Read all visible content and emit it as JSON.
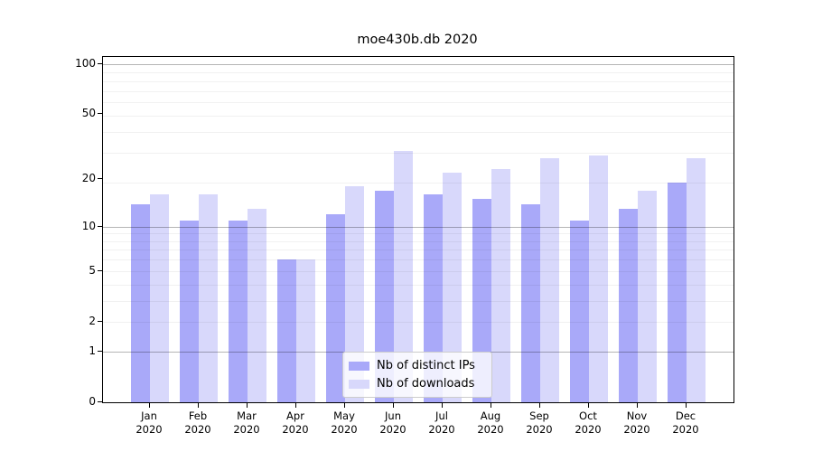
{
  "title": "moe430b.db 2020",
  "chart_data": {
    "type": "bar",
    "title": "moe430b.db 2020",
    "categories": [
      "Jan",
      "Feb",
      "Mar",
      "Apr",
      "May",
      "Jun",
      "Jul",
      "Aug",
      "Sep",
      "Oct",
      "Nov",
      "Dec"
    ],
    "category_year": "2020",
    "series": [
      {
        "name": "Nb of distinct IPs",
        "color": "#a9a9f9",
        "values": [
          14,
          11,
          11,
          6,
          12,
          17,
          16,
          15,
          14,
          11,
          13,
          19
        ]
      },
      {
        "name": "Nb of downloads",
        "color": "#d8d8fb",
        "values": [
          16,
          16,
          13,
          6,
          18,
          30,
          22,
          23,
          27,
          28,
          17,
          27
        ]
      }
    ],
    "xlabel": "",
    "ylabel": "",
    "yscale": "log10(value+1)",
    "yticks": [
      0,
      1,
      2,
      5,
      10,
      20,
      50,
      100
    ],
    "ylim": [
      0,
      110
    ],
    "grid": "on",
    "legend_position": "lower center"
  },
  "colors": {
    "background": "#ffffff",
    "axis": "#000000",
    "major_grid": "#b5b5b5",
    "minor_grid": "#ececec"
  }
}
